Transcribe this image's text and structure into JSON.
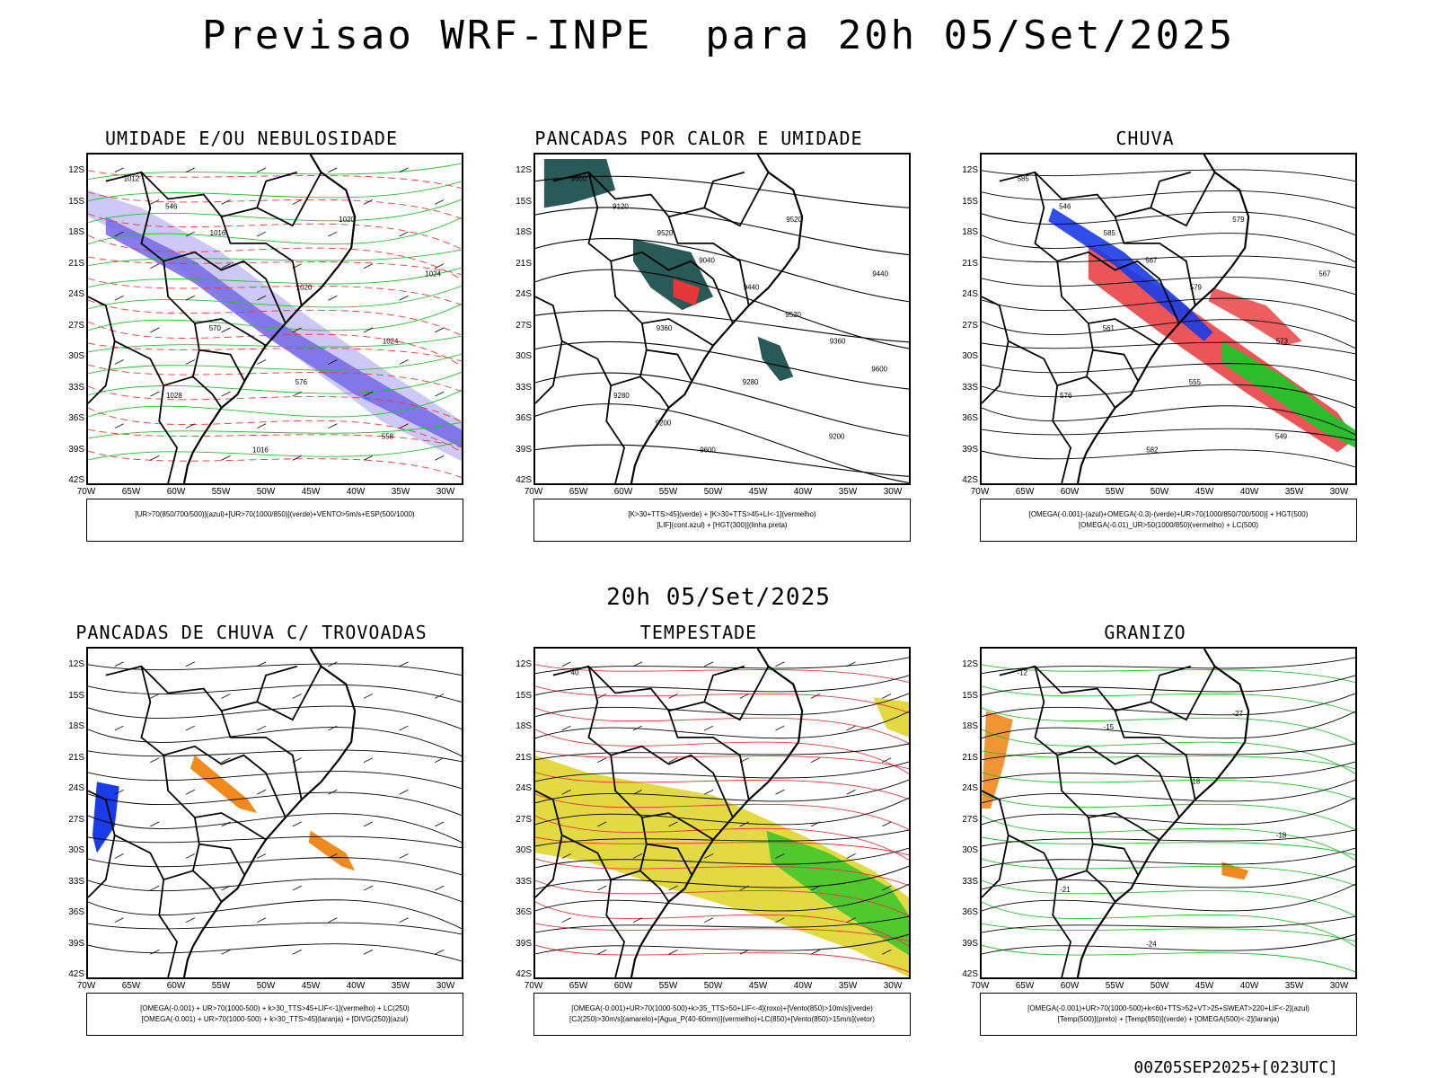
{
  "title": "Previsao WRF-INPE  para 20h 05/Set/2025",
  "subtitle": "20h 05/Set/2025",
  "run_label": "00Z05SEP2025+[023UTC]",
  "lat_labels": [
    "12S",
    "15S",
    "18S",
    "21S",
    "24S",
    "27S",
    "30S",
    "33S",
    "36S",
    "39S",
    "42S"
  ],
  "lon_labels": [
    "70W",
    "65W",
    "60W",
    "55W",
    "50W",
    "45W",
    "40W",
    "35W",
    "30W"
  ],
  "colors": {
    "humidity_blue": "#7a6ee8",
    "humidity_light": "#c8c2f5",
    "green": "#22c22a",
    "red": "#e8373a",
    "orange": "#f08a1e",
    "yellow": "#e0d52e",
    "teal": "#2a5a57",
    "blue": "#1a3ce8"
  },
  "panels": [
    {
      "title": "UMIDADE E/OU NEBULOSIDADE",
      "legend": [
        "[UR>70(850/700/500)](azul)+[UR>70(1000/850)](verde)+VENTO>5m/s+ESP(500/1000)"
      ],
      "labels": [
        "1012",
        "1016",
        "1020",
        "1024",
        "1028",
        "1016",
        "1020",
        "1024",
        "570",
        "576",
        "558",
        "546"
      ]
    },
    {
      "title": "PANCADAS POR CALOR E UMIDADE",
      "legend": [
        "[K>30+TTS>45](verde) + [K>30+TTS>45+LI<-1](vermelho)",
        "[LIF](cont.azul) + [HGT(300)](linha preta)"
      ],
      "labels": [
        "9600",
        "9520",
        "9440",
        "9360",
        "9280",
        "9600",
        "9520",
        "9440",
        "9360",
        "9280",
        "9200",
        "9120",
        "9040",
        "9520",
        "9600",
        "9200"
      ]
    },
    {
      "title": "CHUVA",
      "legend": [
        "[OMEGA(-0.001)-(azul)+OMEGA(-0.3)-(verde)+UR>70(1000/850/700/500)] + HGT(500)",
        "[OMEGA(-0.01)_UR>50(1000/850)(vermelho) + LC(500)"
      ],
      "labels": [
        "585",
        "585",
        "579",
        "573",
        "576",
        "582",
        "579",
        "567",
        "561",
        "555",
        "549",
        "546",
        "567"
      ]
    },
    {
      "title": "PANCADAS DE CHUVA C/ TROVOADAS",
      "legend": [
        "[OMEGA(-0.001) + UR>70(1000-500) + k>30_TTS>45+LIF<-1](vermelho) + LC(250)",
        "[OMEGA(-0.001) + UR>70(1000-500) + k>30_TTS>45](laranja) + [DIVG(250)](azul)"
      ],
      "labels": []
    },
    {
      "title": "TEMPESTADE",
      "legend": [
        "[OMEGA(-0.001)+UR>70(1000-500)+k>35_TTS>50+LIF<-4](roxo)+[Vento(850)>10m/s](verde)",
        "[CJ(250)>30m/s](amarelo)+[Agua_P(40-60mm)](vermelho)+LC(850)+[Vento(850)>15m/s](vetor)"
      ],
      "labels": [
        "40"
      ]
    },
    {
      "title": "GRANIZO",
      "legend": [
        "[OMEGA(-0.001)+UR>70(1000-500)+k<60+TTS>52+VT>25+SWEAT>220+LIF<-2](azul)",
        "[Temp(500)](preto) + [Temp(850)](verde) + [OMEGA(500)<-2](laranja)"
      ],
      "labels": [
        "-12",
        "-15",
        "-18",
        "-18",
        "-21",
        "-24",
        "-27"
      ]
    }
  ]
}
